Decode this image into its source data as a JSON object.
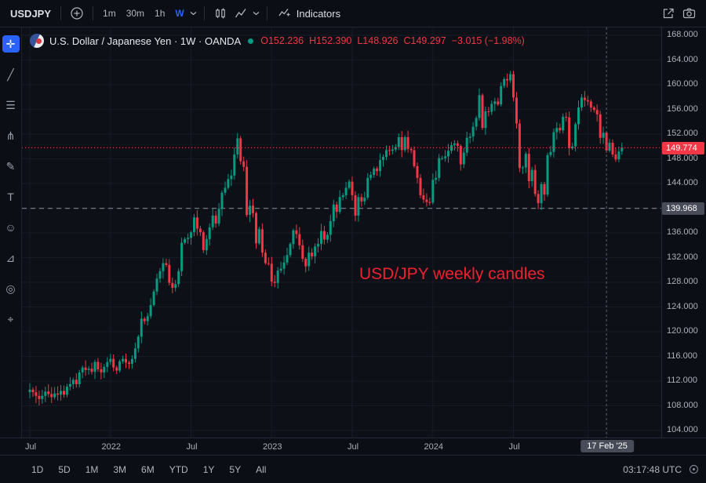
{
  "toolbar": {
    "symbol": "USDJPY",
    "intervals": [
      {
        "label": "1m",
        "active": false
      },
      {
        "label": "30m",
        "active": false
      },
      {
        "label": "1h",
        "active": false
      },
      {
        "label": "W",
        "active": true
      }
    ],
    "indicators_label": "Indicators"
  },
  "sidebar": {
    "tools": [
      {
        "name": "crosshair-tool",
        "glyph": "✛",
        "active": true
      },
      {
        "name": "trend-line-tool",
        "glyph": "╱",
        "active": false
      },
      {
        "name": "fib-retracement-tool",
        "glyph": "☰",
        "active": false
      },
      {
        "name": "pitchfork-tool",
        "glyph": "⋔",
        "active": false
      },
      {
        "name": "brush-tool",
        "glyph": "✎",
        "active": false
      },
      {
        "name": "text-tool",
        "glyph": "T",
        "active": false
      },
      {
        "name": "emoji-tool",
        "glyph": "☺",
        "active": false
      },
      {
        "name": "measure-tool",
        "glyph": "⊿",
        "active": false
      },
      {
        "name": "zoom-tool",
        "glyph": "◎",
        "active": false
      },
      {
        "name": "magnet-tool",
        "glyph": "⌖",
        "active": false
      }
    ]
  },
  "legend": {
    "title": "U.S. Dollar / Japanese Yen · 1W · OANDA",
    "ohlc": {
      "o": "O152.236",
      "h": "H152.390",
      "l": "L148.926",
      "c": "C149.297",
      "change": "−3.015 (−1.98%)"
    }
  },
  "annotation": "USD/JPY weekly candles",
  "price_axis": {
    "ticks": [
      "168.000",
      "164.000",
      "160.000",
      "156.000",
      "152.000",
      "148.000",
      "144.000",
      "140.000",
      "136.000",
      "132.000",
      "128.000",
      "124.000",
      "120.000",
      "116.000",
      "112.000",
      "108.000",
      "104.000"
    ],
    "last_price_label": "149.774",
    "level_label": "139.968"
  },
  "time_axis": {
    "labels": [
      {
        "text": "Jul",
        "i": 0
      },
      {
        "text": "2022",
        "i": 26
      },
      {
        "text": "Jul",
        "i": 52
      },
      {
        "text": "2023",
        "i": 78
      },
      {
        "text": "Jul",
        "i": 104
      },
      {
        "text": "2024",
        "i": 130
      },
      {
        "text": "Jul",
        "i": 156
      }
    ],
    "extra_gridline_indices": [
      180
    ],
    "crosshair_label": "17 Feb '25"
  },
  "bottom_bar": {
    "ranges": [
      "1D",
      "5D",
      "1M",
      "3M",
      "6M",
      "YTD",
      "1Y",
      "5Y",
      "All"
    ],
    "clock": "03:17:48 UTC"
  },
  "chart_data": {
    "type": "candlestick",
    "title": "U.S. Dollar / Japanese Yen, 1W, OANDA",
    "symbol": "USD/JPY",
    "interval": "1W",
    "exchange": "OANDA",
    "x_start": "Jul 2021",
    "x_end": "Mar 2025",
    "y_range": [
      104,
      168
    ],
    "grid": true,
    "last_price": 149.774,
    "dashed_level": 139.968,
    "crosshair": {
      "index": 186,
      "date": "17 Feb '25",
      "o": 152.236,
      "h": 152.39,
      "l": 148.926,
      "c": 149.297
    },
    "weekly_closes": [
      110.6,
      110.2,
      109.6,
      109.1,
      109.6,
      110.3,
      109.9,
      109.4,
      110.0,
      109.8,
      110.4,
      109.8,
      111.1,
      111.5,
      112.2,
      111.5,
      113.4,
      114.2,
      113.8,
      114.0,
      113.5,
      115.1,
      113.9,
      113.4,
      114.3,
      115.1,
      115.6,
      114.2,
      113.7,
      115.2,
      115.6,
      115.0,
      114.8,
      115.6,
      117.3,
      119.2,
      122.1,
      121.7,
      122.5,
      124.3,
      126.5,
      128.6,
      129.8,
      131.1,
      130.8,
      127.9,
      127.1,
      127.7,
      129.8,
      134.4,
      135.0,
      135.2,
      136.1,
      138.5,
      136.7,
      136.1,
      133.2,
      135.0,
      136.9,
      138.8,
      137.5,
      139.9,
      142.5,
      143.3,
      144.7,
      145.3,
      148.7,
      151.3,
      147.6,
      146.7,
      138.9,
      140.4,
      139.2,
      134.3,
      136.6,
      132.8,
      131.1,
      131.0,
      128.1,
      127.9,
      129.9,
      130.2,
      131.2,
      132.4,
      134.2,
      136.4,
      135.8,
      134.0,
      131.8,
      130.6,
      132.8,
      132.2,
      133.8,
      134.2,
      136.3,
      134.9,
      135.7,
      137.9,
      140.6,
      139.4,
      141.8,
      142.1,
      143.3,
      144.3,
      142.1,
      138.8,
      141.8,
      141.1,
      141.7,
      144.9,
      145.4,
      146.4,
      146.0,
      147.8,
      148.3,
      149.4,
      149.3,
      149.5,
      149.9,
      151.5,
      149.4,
      151.5,
      149.6,
      149.4,
      146.8,
      144.9,
      142.1,
      141.4,
      141.0,
      140.9,
      144.6,
      144.9,
      148.1,
      148.1,
      148.4,
      149.3,
      150.2,
      150.5,
      150.1,
      147.1,
      149.0,
      151.4,
      151.6,
      153.2,
      154.6,
      158.3,
      153.0,
      155.7,
      155.6,
      156.9,
      157.3,
      156.8,
      159.8,
      160.9,
      160.7,
      161.7,
      157.9,
      153.7,
      146.5,
      146.6,
      148.8,
      144.4,
      146.2,
      142.3,
      140.8,
      143.9,
      142.2,
      148.6,
      149.1,
      152.3,
      153.0,
      152.6,
      154.8,
      154.7,
      149.7,
      150.0,
      153.6,
      156.3,
      157.9,
      157.5,
      157.3,
      156.3,
      155.9,
      155.2,
      151.4,
      152.2,
      149.3,
      150.6,
      148.7,
      147.9,
      149.2,
      149.8
    ]
  },
  "colors": {
    "up": "#089981",
    "down": "#f23645",
    "accent": "#2962ff",
    "annotation": "#ef2130",
    "last_price_bg": "#f23645",
    "badge_bg": "#474c58",
    "grid": "#161b27"
  }
}
